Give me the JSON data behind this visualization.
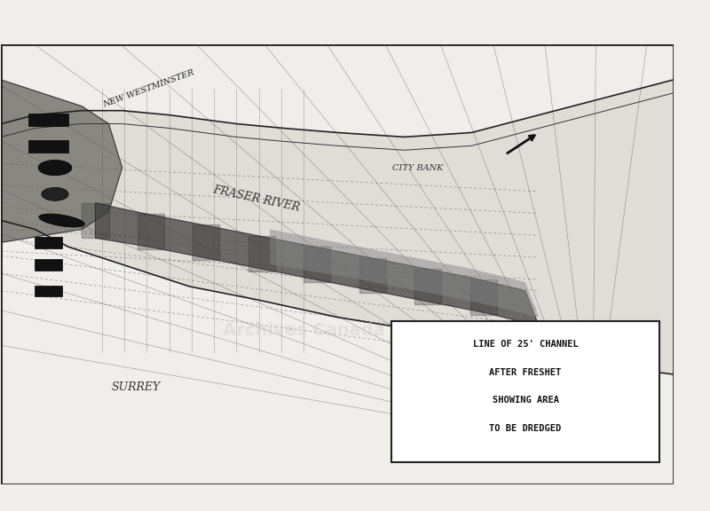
{
  "bg_color": "#f0eeea",
  "map_bg": "#d8d4cc",
  "border_color": "#333333",
  "title_text": "LINE OF 25' CHANNEL\nAFTER FRESHET\nSHOWING AREA\nTO BE DREDGED",
  "label_new_westminster": "NEW WESTMINSTER",
  "label_fraser_river": "FRASER RIVER",
  "label_city_bank": "CITY BANK",
  "label_surrey": "SURREY",
  "fig_width": 8.0,
  "fig_height": 5.76
}
